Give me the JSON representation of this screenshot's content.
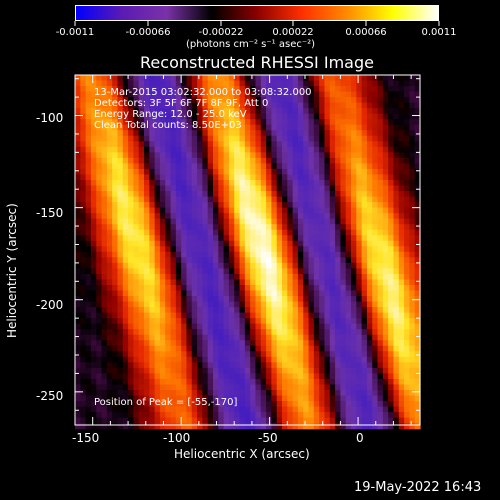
{
  "colorbar": {
    "tick_labels": [
      "-0.0011",
      "-0.00066",
      "-0.00022",
      "0.00022",
      "0.00066",
      "0.0011"
    ],
    "units_label": "(photons cm⁻² s⁻¹ asec⁻²)",
    "range": [
      -0.0011,
      0.0011
    ],
    "colors": [
      "#0000ff",
      "#5a1ab4",
      "#7a32a8",
      "#000000",
      "#8b0000",
      "#ff3000",
      "#ff8c00",
      "#ffff00",
      "#ffffff"
    ]
  },
  "plot": {
    "title": "Reconstructed RHESSI Image",
    "info_lines": [
      "13-Mar-2015 03:02:32.000 to 03:08:32.000",
      "Detectors: 3F 5F 6F 7F 8F 9F, Att 0",
      "Energy Range: 12.0 - 25.0 keV",
      "Clean     Total counts: 8.50E+03"
    ],
    "peak_label": "Position of Peak = [-55,-170]",
    "xlabel": "Heliocentric X (arcsec)",
    "ylabel": "Heliocentric Y (arcsec)",
    "x_ticks": [
      "-150",
      "-100",
      "-50",
      "0"
    ],
    "y_ticks": [
      "-100",
      "-150",
      "-200",
      "-250"
    ]
  },
  "chart_data": {
    "type": "heatmap",
    "title": "Reconstructed RHESSI Image",
    "xlabel": "Heliocentric X (arcsec)",
    "ylabel": "Heliocentric Y (arcsec)",
    "xlim": [
      -160,
      35
    ],
    "ylim": [
      -268,
      -78
    ],
    "peak": [
      -55,
      -170
    ],
    "stripe_centers_x_at_y_-170": [
      -125,
      -55,
      10
    ],
    "stripe_slope_x_per_y": -0.27,
    "dark_stripe_centers_x_at_y_-170": [
      -90,
      -20
    ]
  },
  "datestamp": "19-May-2022 16:43"
}
